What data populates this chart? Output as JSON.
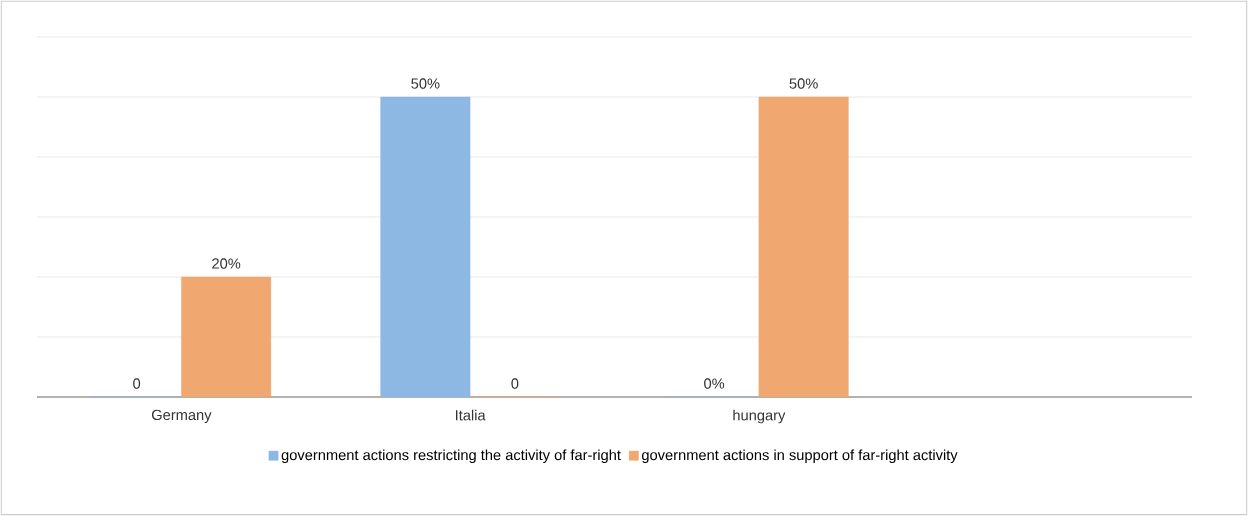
{
  "chart_data": {
    "type": "bar",
    "categories": [
      "Germany",
      "Italia",
      "hungary",
      null
    ],
    "series": [
      {
        "name": "government actions restricting the activity of far-right",
        "color": "#8db8e3",
        "values": [
          0,
          50,
          0,
          null
        ],
        "value_labels": [
          "0",
          "50%",
          "0%",
          null
        ]
      },
      {
        "name": "government actions in support of  far-right activity",
        "color": "#f0a770",
        "values": [
          20,
          0,
          50,
          null
        ],
        "value_labels": [
          "20%",
          "0",
          "50%",
          null
        ]
      }
    ],
    "ylim": [
      0,
      60
    ],
    "yticks": [
      {
        "value": 0,
        "label": null
      },
      {
        "value": 10,
        "label": null
      },
      {
        "value": 20,
        "label": null
      },
      {
        "value": 30,
        "label": null
      },
      {
        "value": 40,
        "label": null
      },
      {
        "value": 50,
        "label": null
      },
      {
        "value": 60,
        "label": null
      }
    ],
    "tick_labels": "x",
    "grid": "y",
    "legend": "bottom"
  }
}
